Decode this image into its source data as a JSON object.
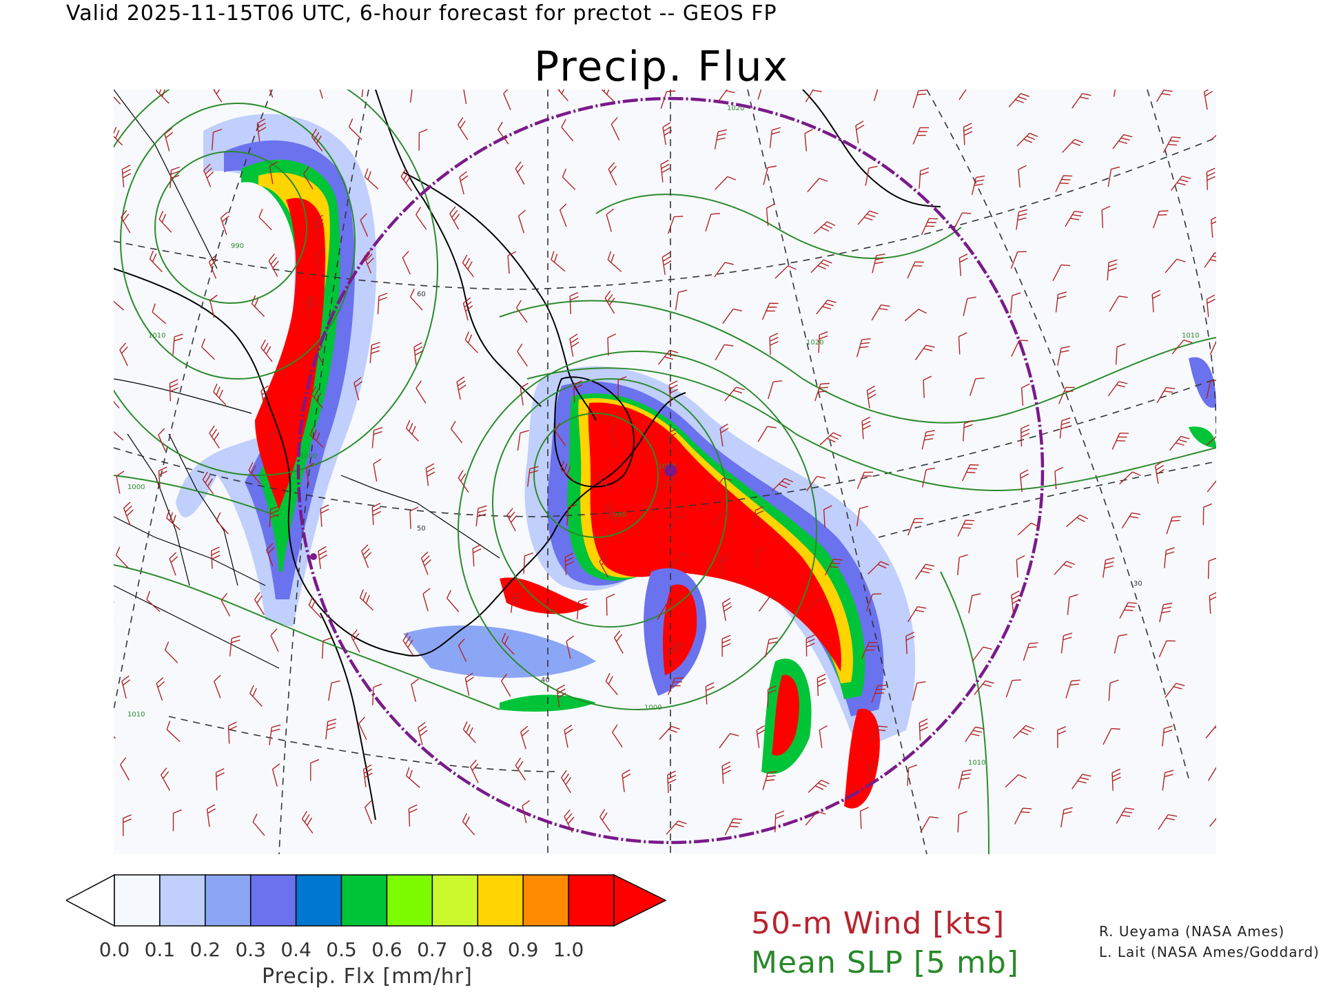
{
  "header": {
    "valid_line": "Valid 2025-11-15T06 UTC, 6-hour forecast for prectot -- GEOS FP",
    "title": "Precip. Flux"
  },
  "colorbar": {
    "title": "Precip. Flx [mm/hr]",
    "tick_labels": [
      "0.0",
      "0.1",
      "0.2",
      "0.3",
      "0.4",
      "0.5",
      "0.6",
      "0.7",
      "0.8",
      "0.9",
      "1.0"
    ],
    "colors": [
      "#f5f8fc",
      "#c0cffc",
      "#8ca6f6",
      "#6b72ee",
      "#0077d0",
      "#00c437",
      "#7dfc00",
      "#ccf82e",
      "#ffd400",
      "#ff8c00",
      "#ff0000"
    ],
    "under_color": "#ffffff",
    "over_color": "#ff0000"
  },
  "legend": {
    "wind": "50-m Wind [kts]",
    "slp": "Mean SLP [5 mb]",
    "wind_color": "#b8232d",
    "slp_color": "#28892a"
  },
  "credits": {
    "line1": "R. Ueyama (NASA Ames)",
    "line2": "L. Lait (NASA Ames/Goddard)"
  },
  "map": {
    "isobar_labels": [
      "990",
      "1000",
      "1010",
      "1020",
      "1010",
      "1000",
      "1010",
      "1020",
      "1010",
      "990",
      "1000",
      "1010"
    ],
    "latitude_labels": [
      "60",
      "50",
      "40",
      "30"
    ],
    "marker_color": "#7a1a8a",
    "isobar_color": "#2b8a2b",
    "barb_color": "#b22222"
  }
}
